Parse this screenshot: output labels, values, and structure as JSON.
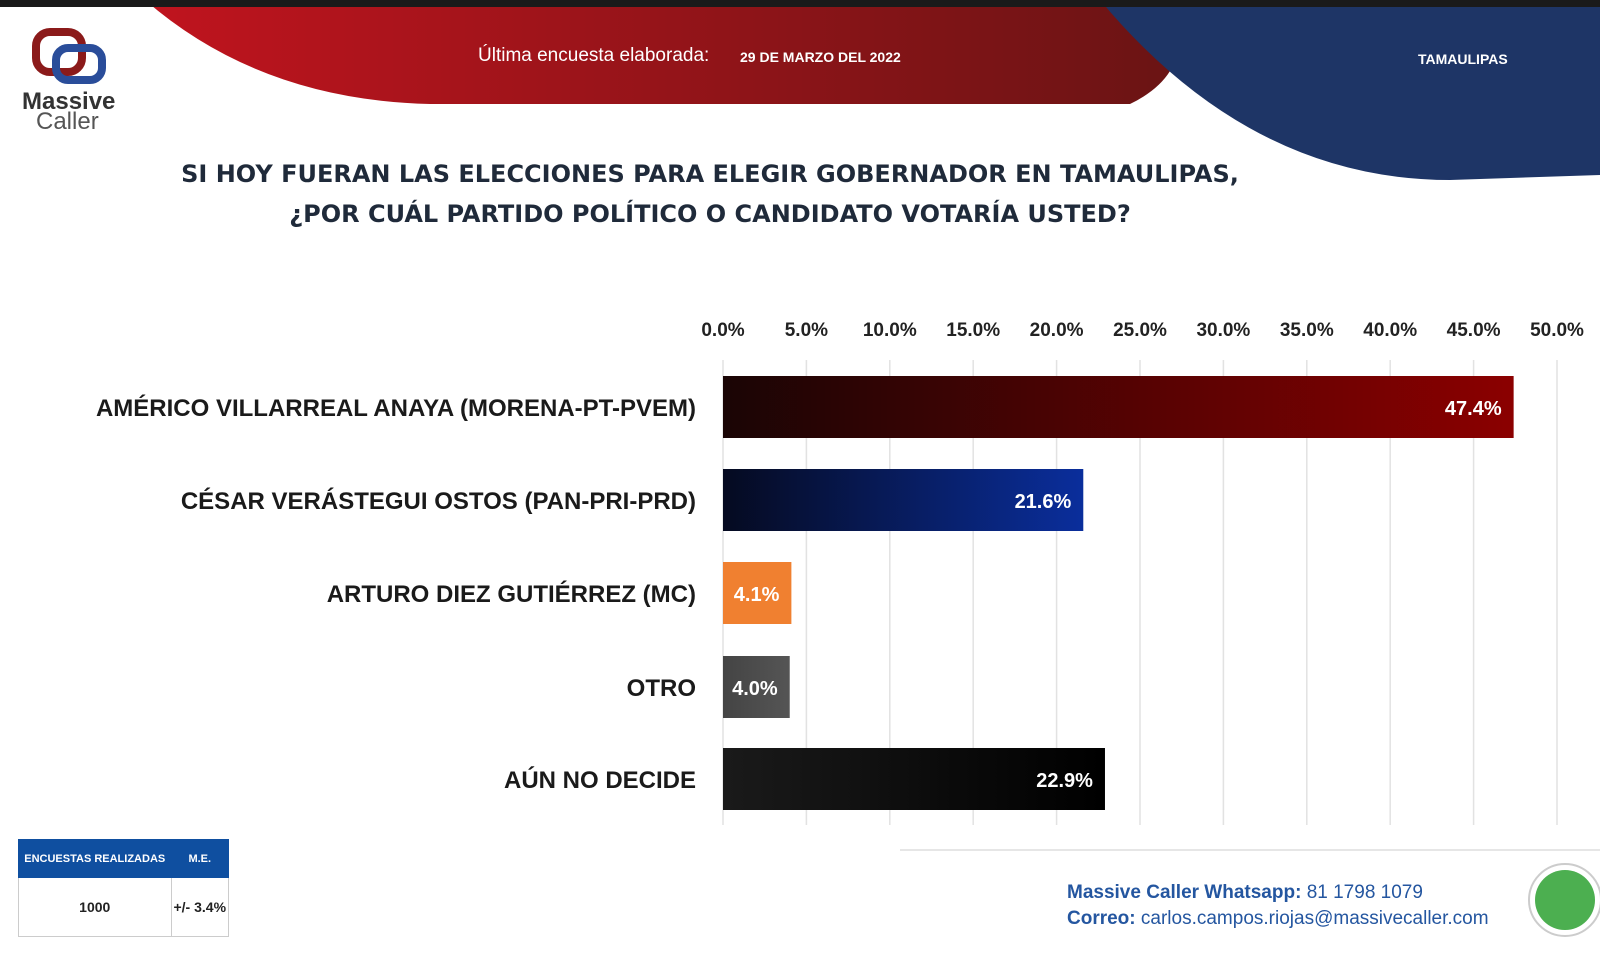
{
  "header": {
    "brand": "Massive Caller",
    "brand_line1": "Massive",
    "brand_line2": "Caller",
    "survey_label": "Última encuesta elaborada:",
    "survey_date": "29 DE MARZO DEL 2022",
    "state": "TAMAULIPAS"
  },
  "question": {
    "line1": "SI HOY FUERAN LAS ELECCIONES PARA ELEGIR GOBERNADOR EN TAMAULIPAS,",
    "line2": "¿POR CUÁL PARTIDO POLÍTICO O CANDIDATO VOTARÍA USTED?"
  },
  "chart_data": {
    "type": "bar",
    "orientation": "horizontal",
    "title": "",
    "xlim": [
      0,
      50
    ],
    "x_ticks": [
      "0.0%",
      "5.0%",
      "10.0%",
      "15.0%",
      "20.0%",
      "25.0%",
      "30.0%",
      "35.0%",
      "40.0%",
      "45.0%",
      "50.0%"
    ],
    "axis_position": "top",
    "grid": true,
    "categories": [
      "AMÉRICO VILLARREAL ANAYA (MORENA-PT-PVEM)",
      "CÉSAR VERÁSTEGUI OSTOS (PAN-PRI-PRD)",
      "ARTURO DIEZ GUTIÉRREZ (MC)",
      "OTRO",
      "AÚN NO DECIDE"
    ],
    "values": [
      47.4,
      21.6,
      4.1,
      4.0,
      22.9
    ],
    "data_labels": [
      "47.4%",
      "21.6%",
      "4.1%",
      "4.0%",
      "22.9%"
    ],
    "colors": [
      [
        "#1a0505",
        "#8b0000"
      ],
      [
        "#050a20",
        "#0a2e9c"
      ],
      [
        "#f08030",
        "#f08030"
      ],
      [
        "#444444",
        "#555555"
      ],
      [
        "#1a1a1a",
        "#000000"
      ]
    ]
  },
  "info_table": {
    "headers": [
      "ENCUESTAS REALIZADAS",
      "M.E."
    ],
    "values": [
      "1000",
      "+/- 3.4%"
    ]
  },
  "contact": {
    "whatsapp_label": "Massive Caller Whatsapp:",
    "whatsapp_number": "81 1798 1079",
    "email_label": "Correo:",
    "email": "carlos.campos.riojas@massivecaller.com"
  },
  "colors": {
    "red": "#b0161f",
    "navy": "#1e3566",
    "blue_text": "#2456a0"
  }
}
